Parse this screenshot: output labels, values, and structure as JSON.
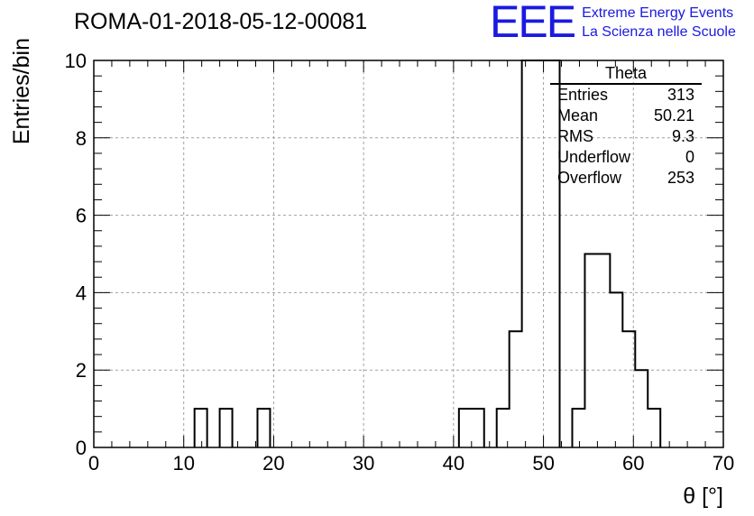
{
  "title": "ROMA-01-2018-05-12-00081",
  "brand": {
    "logo": "EEE",
    "line1": "Extreme Energy Events",
    "line2": "La Scienza nelle Scuole",
    "color": "#1a1adf"
  },
  "stats": {
    "title": "Theta",
    "rows": [
      {
        "label": "Entries",
        "value": "313"
      },
      {
        "label": "Mean",
        "value": "50.21"
      },
      {
        "label": "RMS",
        "value": "9.3"
      },
      {
        "label": "Underflow",
        "value": "0"
      },
      {
        "label": "Overflow",
        "value": "253"
      }
    ]
  },
  "chart_data": {
    "type": "histogram",
    "title": "ROMA-01-2018-05-12-00081",
    "xlabel": "θ [°]",
    "ylabel": "Entries/bin",
    "xlim": [
      0,
      70
    ],
    "ylim": [
      0,
      10
    ],
    "bin_width": 1.4,
    "xticks": [
      0,
      10,
      20,
      30,
      40,
      50,
      60,
      70
    ],
    "yticks": [
      0,
      2,
      4,
      6,
      8,
      10
    ],
    "grid": true,
    "bins": [
      {
        "x": 11.2,
        "value": 1
      },
      {
        "x": 14.0,
        "value": 1
      },
      {
        "x": 18.2,
        "value": 1
      },
      {
        "x": 40.6,
        "value": 1
      },
      {
        "x": 42.0,
        "value": 1
      },
      {
        "x": 44.8,
        "value": 1
      },
      {
        "x": 46.2,
        "value": 3
      },
      {
        "x": 47.6,
        "value": 10
      },
      {
        "x": 49.0,
        "value": 10
      },
      {
        "x": 50.4,
        "value": 10
      },
      {
        "x": 53.2,
        "value": 1
      },
      {
        "x": 54.6,
        "value": 5
      },
      {
        "x": 56.0,
        "value": 5
      },
      {
        "x": 57.4,
        "value": 4
      },
      {
        "x": 58.8,
        "value": 3
      },
      {
        "x": 60.2,
        "value": 2
      },
      {
        "x": 61.6,
        "value": 1
      }
    ]
  }
}
